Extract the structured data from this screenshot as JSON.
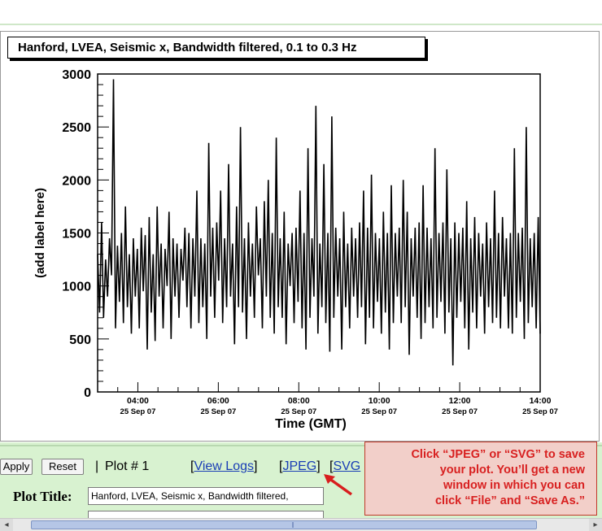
{
  "chart_data": {
    "type": "line",
    "title": "Hanford, LVEA, Seismic x, Bandwidth filtered, 0.1 to 0.3 Hz",
    "xlabel": "Time (GMT)",
    "ylabel": "(add label here)",
    "ylim": [
      0,
      3000
    ],
    "xlim_hours": [
      3.0,
      14.0
    ],
    "y_ticks": [
      0,
      500,
      1000,
      1500,
      2000,
      2500,
      3000
    ],
    "x_ticks": [
      {
        "hour": 4,
        "time": "04:00",
        "date": "25 Sep 07"
      },
      {
        "hour": 6,
        "time": "06:00",
        "date": "25 Sep 07"
      },
      {
        "hour": 8,
        "time": "08:00",
        "date": "25 Sep 07"
      },
      {
        "hour": 10,
        "time": "10:00",
        "date": "25 Sep 07"
      },
      {
        "hour": 12,
        "time": "12:00",
        "date": "25 Sep 07"
      },
      {
        "hour": 14,
        "time": "14:00",
        "date": "25 Sep 07"
      }
    ],
    "series": [
      {
        "values": [
          1300,
          750,
          1600,
          700,
          1250,
          900,
          1450,
          1100,
          2950,
          600,
          1380,
          850,
          1500,
          650,
          1750,
          800,
          1300,
          550,
          1450,
          900,
          1350,
          600,
          1550,
          950,
          1480,
          400,
          1650,
          750,
          1300,
          480,
          1750,
          900,
          1400,
          600,
          1350,
          1000,
          1700,
          500,
          1450,
          900,
          1400,
          700,
          1350,
          1050,
          1550,
          800,
          1500,
          600,
          1450,
          900,
          1900,
          650,
          1450,
          800,
          1400,
          500,
          2350,
          900,
          1550,
          700,
          1600,
          1050,
          1900,
          650,
          1450,
          800,
          2150,
          900,
          1400,
          450,
          1750,
          800,
          2500,
          750,
          1450,
          500,
          1600,
          900,
          1400,
          700,
          1750,
          1100,
          1450,
          600,
          1800,
          900,
          2000,
          700,
          1500,
          550,
          2400,
          800,
          1450,
          700,
          1700,
          450,
          1400,
          1000,
          1500,
          650,
          1550,
          850,
          1900,
          600,
          1500,
          400,
          2300,
          700,
          1450,
          900,
          2700,
          550,
          1400,
          800,
          2150,
          650,
          1500,
          380,
          2600,
          700,
          1550,
          900,
          1450,
          400,
          1700,
          800,
          1400,
          600,
          1550,
          900,
          1450,
          700,
          1600,
          800,
          1900,
          450,
          1550,
          700,
          2050,
          600,
          1500,
          850,
          1450,
          550,
          1700,
          750,
          1500,
          400,
          1950,
          650,
          1500,
          900,
          1550,
          650,
          2000,
          800,
          1700,
          350,
          1450,
          900,
          1550,
          700,
          1600,
          500,
          1950,
          650,
          1550,
          800,
          1450,
          600,
          2300,
          700,
          1500,
          850,
          1600,
          550,
          2100,
          750,
          1450,
          250,
          1600,
          700,
          1500,
          850,
          1550,
          600,
          1800,
          400,
          1450,
          750,
          1650,
          600,
          1500,
          900,
          1400,
          550,
          1600,
          800,
          1450,
          650,
          1900,
          700,
          1500,
          600,
          1650,
          900,
          1450,
          600,
          1500,
          550,
          2300,
          700,
          1500,
          850,
          1550,
          500,
          2500,
          650,
          1450,
          800,
          1500,
          600,
          1650,
          550
        ]
      }
    ]
  },
  "toolbar": {
    "apply_label": "Apply",
    "reset_label": "Reset",
    "separator": "|",
    "plot_number": "Plot # 1",
    "view_logs_label": "View Logs",
    "jpeg_label": "JPEG",
    "svg_label": "SVG",
    "bracket_open": "[",
    "bracket_close": "]"
  },
  "form": {
    "plot_title_label": "Plot Title:",
    "plot_title_value": "Hanford, LVEA, Seismic x, Bandwidth filtered,"
  },
  "callout": {
    "lines": [
      "Click “JPEG” or “SVG” to save",
      "your plot.  You’ll get a new",
      "window in which you can",
      "click “File” and “Save As.”"
    ],
    "color": "#d82020"
  },
  "colors": {
    "green_band": "#d8f2d0",
    "link": "#1a3eb5",
    "arrow": "#d81e1e"
  },
  "icons": {
    "scroll_left": "◂",
    "scroll_right": "▸"
  }
}
